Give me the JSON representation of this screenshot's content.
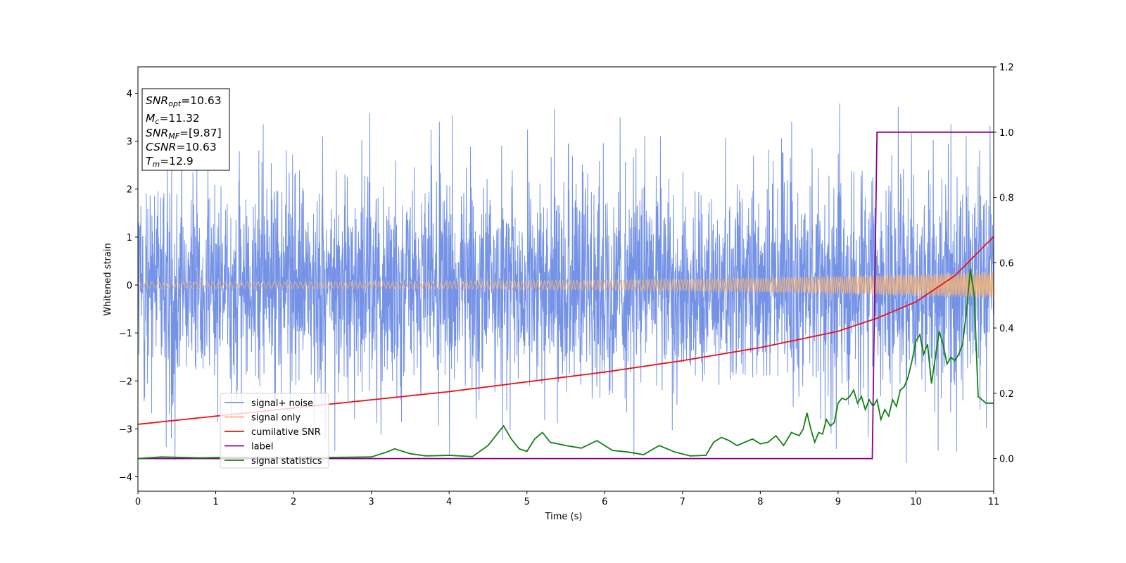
{
  "chart_data": {
    "type": "line",
    "title": "",
    "xlabel": "Time (s)",
    "ylabel": "Whitened strain",
    "xlim": [
      0,
      11
    ],
    "ylim": [
      -4.3,
      4.55
    ],
    "y2lim": [
      -0.1,
      1.2
    ],
    "x_ticks": [
      0,
      1,
      2,
      3,
      4,
      5,
      6,
      7,
      8,
      9,
      10,
      11
    ],
    "y_ticks": [
      -4,
      -3,
      -2,
      -1,
      0,
      1,
      2,
      3,
      4
    ],
    "y2_ticks": [
      "0.0",
      "0.2",
      "0.4",
      "0.6",
      "0.8",
      "1.0",
      "1.2"
    ],
    "grid": false,
    "legend_position": "lower-left",
    "annotation": [
      {
        "base": "SNR",
        "sub": "opt",
        "value": "=10.63"
      },
      {
        "base": "M",
        "sub": "c",
        "value": "=11.32"
      },
      {
        "base": "SNR",
        "sub": "MF",
        "value": "=[9.87]"
      },
      {
        "base": "CSNR",
        "sub": "",
        "value": "=10.63"
      },
      {
        "base": "T",
        "sub": "m",
        "value": "=12.9"
      }
    ],
    "series": [
      {
        "name": "signal+ noise",
        "axis": "left",
        "color": "#7593e6",
        "description_of_envelope": "dense noise",
        "x_range": [
          0,
          11
        ],
        "typical_extent": [
          -2.6,
          2.6
        ],
        "max_peak": 4.0,
        "min_peak": -3.85
      },
      {
        "name": "signal only",
        "axis": "left",
        "color": "#f2b37a",
        "x_range": [
          0,
          11
        ],
        "amplitude_start": 0.07,
        "amplitude_end": 0.28
      },
      {
        "name": "cumilative SNR",
        "axis": "right",
        "color": "#ee1111",
        "x": [
          0,
          1,
          2,
          3,
          4,
          5,
          6,
          7,
          8,
          9,
          9.5,
          10,
          10.5,
          11
        ],
        "y": [
          0.105,
          0.13,
          0.155,
          0.18,
          0.205,
          0.235,
          0.265,
          0.3,
          0.34,
          0.39,
          0.43,
          0.48,
          0.56,
          0.68
        ]
      },
      {
        "name": "label",
        "axis": "right",
        "color": "#8b008b",
        "x": [
          0,
          9.44,
          9.5,
          11
        ],
        "y": [
          0.0,
          0.0,
          1.0,
          1.0
        ]
      },
      {
        "name": "signal statistics",
        "axis": "right",
        "color": "#118011",
        "x": [
          0,
          0.3,
          0.8,
          1.2,
          1.8,
          2.4,
          3.0,
          3.2,
          3.3,
          3.5,
          3.7,
          4.0,
          4.3,
          4.5,
          4.6,
          4.7,
          4.8,
          4.9,
          5.0,
          5.1,
          5.2,
          5.3,
          5.5,
          5.7,
          5.9,
          6.1,
          6.3,
          6.5,
          6.7,
          6.9,
          7.1,
          7.3,
          7.4,
          7.5,
          7.6,
          7.7,
          7.8,
          7.9,
          8.0,
          8.1,
          8.2,
          8.3,
          8.4,
          8.5,
          8.55,
          8.6,
          8.65,
          8.7,
          8.75,
          8.8,
          8.85,
          8.9,
          8.95,
          9.0,
          9.05,
          9.1,
          9.15,
          9.2,
          9.25,
          9.3,
          9.35,
          9.4,
          9.45,
          9.5,
          9.55,
          9.6,
          9.65,
          9.7,
          9.75,
          9.8,
          9.85,
          9.9,
          9.95,
          10.0,
          10.05,
          10.1,
          10.15,
          10.2,
          10.25,
          10.3,
          10.35,
          10.4,
          10.45,
          10.5,
          10.55,
          10.6,
          10.65,
          10.7,
          10.75,
          10.8,
          10.85,
          10.9,
          10.95,
          11.0
        ],
        "y": [
          0.0,
          0.005,
          0.002,
          0.004,
          0.002,
          0.003,
          0.005,
          0.02,
          0.03,
          0.015,
          0.008,
          0.01,
          0.006,
          0.04,
          0.07,
          0.1,
          0.06,
          0.03,
          0.022,
          0.06,
          0.08,
          0.05,
          0.04,
          0.032,
          0.055,
          0.025,
          0.02,
          0.012,
          0.04,
          0.02,
          0.008,
          0.01,
          0.05,
          0.065,
          0.055,
          0.04,
          0.05,
          0.06,
          0.045,
          0.05,
          0.07,
          0.04,
          0.08,
          0.07,
          0.09,
          0.14,
          0.09,
          0.05,
          0.08,
          0.075,
          0.12,
          0.1,
          0.11,
          0.17,
          0.185,
          0.18,
          0.19,
          0.21,
          0.17,
          0.19,
          0.15,
          0.18,
          0.16,
          0.18,
          0.12,
          0.15,
          0.13,
          0.18,
          0.16,
          0.21,
          0.22,
          0.25,
          0.3,
          0.36,
          0.38,
          0.32,
          0.35,
          0.23,
          0.31,
          0.39,
          0.35,
          0.29,
          0.31,
          0.3,
          0.32,
          0.35,
          0.45,
          0.58,
          0.5,
          0.19,
          0.18,
          0.17,
          0.17,
          0.17
        ]
      }
    ]
  }
}
